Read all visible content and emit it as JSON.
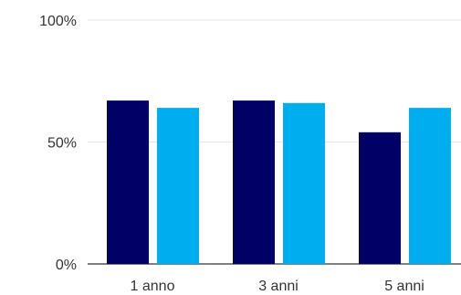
{
  "chart_data": {
    "type": "bar",
    "title": "",
    "xlabel": "",
    "ylabel": "",
    "categories": [
      "1 anno",
      "3 anni",
      "5 anni"
    ],
    "series": [
      {
        "values": [
          67,
          67,
          54
        ],
        "color": "#010066"
      },
      {
        "values": [
          64,
          66,
          64
        ],
        "color": "#00adef"
      }
    ],
    "ylim": [
      0,
      100
    ],
    "yticks": [
      {
        "value": 0,
        "label": "0%"
      },
      {
        "value": 50,
        "label": "50%"
      },
      {
        "value": 100,
        "label": "100%"
      }
    ],
    "grid": true,
    "legend": "none"
  }
}
